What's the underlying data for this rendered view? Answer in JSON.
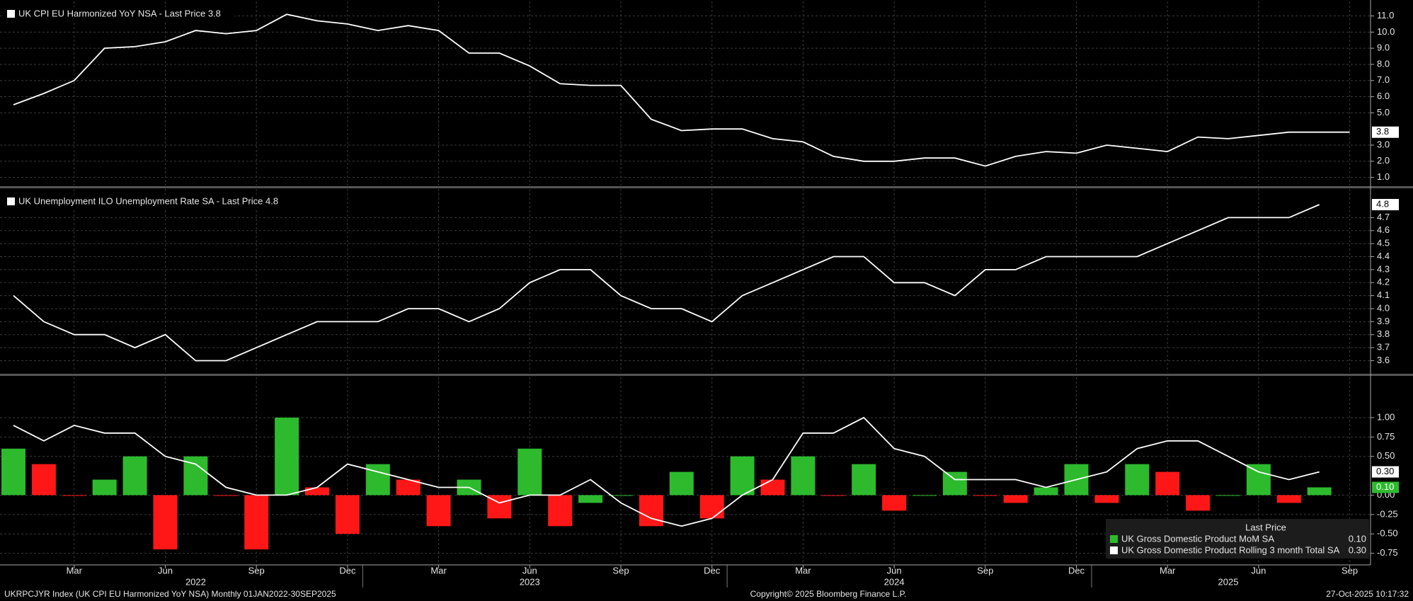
{
  "chart_data": [
    {
      "type": "line",
      "x": [
        "2022-01",
        "2022-02",
        "2022-03",
        "2022-04",
        "2022-05",
        "2022-06",
        "2022-07",
        "2022-08",
        "2022-09",
        "2022-10",
        "2022-11",
        "2022-12",
        "2023-01",
        "2023-02",
        "2023-03",
        "2023-04",
        "2023-05",
        "2023-06",
        "2023-07",
        "2023-08",
        "2023-09",
        "2023-10",
        "2023-11",
        "2023-12",
        "2024-01",
        "2024-02",
        "2024-03",
        "2024-04",
        "2024-05",
        "2024-06",
        "2024-07",
        "2024-08",
        "2024-09",
        "2024-10",
        "2024-11",
        "2024-12",
        "2025-01",
        "2025-02",
        "2025-03",
        "2025-04",
        "2025-05",
        "2025-06",
        "2025-07",
        "2025-08",
        "2025-09"
      ],
      "series": [
        {
          "name": "UK CPI EU Harmonized YoY NSA - Last Price 3.8",
          "color": "#ffffff",
          "values": [
            5.5,
            6.2,
            7.0,
            9.0,
            9.1,
            9.4,
            10.1,
            9.9,
            10.1,
            11.1,
            10.7,
            10.5,
            10.1,
            10.4,
            10.1,
            8.7,
            8.7,
            7.9,
            6.8,
            6.7,
            6.7,
            4.6,
            3.9,
            4.0,
            4.0,
            3.4,
            3.2,
            2.3,
            2.0,
            2.0,
            2.2,
            2.2,
            1.7,
            2.3,
            2.6,
            2.5,
            3.0,
            2.8,
            2.6,
            3.5,
            3.4,
            3.6,
            3.8,
            3.8,
            3.8
          ]
        }
      ],
      "ylim": [
        0.5,
        11.9
      ],
      "yticks": [
        {
          "value": 11,
          "label": "11.0"
        },
        {
          "value": 10,
          "label": "10.0"
        },
        {
          "value": 9,
          "label": "9.0"
        },
        {
          "value": 8,
          "label": "8.0"
        },
        {
          "value": 7,
          "label": "7.0"
        },
        {
          "value": 6,
          "label": "6.0"
        },
        {
          "value": 5,
          "label": "5.0"
        },
        {
          "value": 3,
          "label": "3.0"
        },
        {
          "value": 2,
          "label": "2.0"
        },
        {
          "value": 1,
          "label": "1.0"
        }
      ],
      "grid": true
    },
    {
      "type": "line",
      "x": [
        "2022-01",
        "2022-02",
        "2022-03",
        "2022-04",
        "2022-05",
        "2022-06",
        "2022-07",
        "2022-08",
        "2022-09",
        "2022-10",
        "2022-11",
        "2022-12",
        "2023-01",
        "2023-02",
        "2023-03",
        "2023-04",
        "2023-05",
        "2023-06",
        "2023-07",
        "2023-08",
        "2023-09",
        "2023-10",
        "2023-11",
        "2023-12",
        "2024-01",
        "2024-02",
        "2024-03",
        "2024-04",
        "2024-05",
        "2024-06",
        "2024-07",
        "2024-08",
        "2024-09",
        "2024-10",
        "2024-11",
        "2024-12",
        "2025-01",
        "2025-02",
        "2025-03",
        "2025-04",
        "2025-05",
        "2025-06",
        "2025-07",
        "2025-08",
        "2025-09"
      ],
      "series": [
        {
          "name": "UK Unemployment ILO Unemployment Rate SA - Last Price 4.8",
          "color": "#ffffff",
          "values": [
            4.1,
            3.9,
            3.8,
            3.8,
            3.7,
            3.8,
            3.6,
            3.6,
            3.7,
            3.8,
            3.9,
            3.9,
            3.9,
            4.0,
            4.0,
            3.9,
            4.0,
            4.2,
            4.3,
            4.3,
            4.1,
            4.0,
            4.0,
            3.9,
            4.1,
            4.2,
            4.3,
            4.4,
            4.4,
            4.2,
            4.2,
            4.1,
            4.3,
            4.3,
            4.4,
            4.4,
            4.4,
            4.4,
            4.5,
            4.6,
            4.7,
            4.7,
            4.7,
            4.8,
            null
          ]
        }
      ],
      "ylim": [
        3.51,
        4.92
      ],
      "yticks": [
        4.7,
        4.6,
        4.5,
        4.4,
        4.3,
        4.2,
        4.1,
        {
          "value": 4,
          "label": "4.0"
        },
        3.9,
        3.8,
        3.7,
        3.6
      ],
      "grid": true
    },
    {
      "type": "combo",
      "x": [
        "2022-01",
        "2022-02",
        "2022-03",
        "2022-04",
        "2022-05",
        "2022-06",
        "2022-07",
        "2022-08",
        "2022-09",
        "2022-10",
        "2022-11",
        "2022-12",
        "2023-01",
        "2023-02",
        "2023-03",
        "2023-04",
        "2023-05",
        "2023-06",
        "2023-07",
        "2023-08",
        "2023-09",
        "2023-10",
        "2023-11",
        "2023-12",
        "2024-01",
        "2024-02",
        "2024-03",
        "2024-04",
        "2024-05",
        "2024-06",
        "2024-07",
        "2024-08",
        "2024-09",
        "2024-10",
        "2024-11",
        "2024-12",
        "2025-01",
        "2025-02",
        "2025-03",
        "2025-04",
        "2025-05",
        "2025-06",
        "2025-07",
        "2025-08",
        "2025-09"
      ],
      "series": [
        {
          "name": "UK Gross Domestic Product MoM SA",
          "type": "bar",
          "color_up": "#2dba2d",
          "color_down": "#ff1717",
          "values": [
            0.6,
            0.4,
            0.0,
            0.2,
            0.5,
            -0.7,
            0.5,
            0.0,
            -0.7,
            1.0,
            0.1,
            -0.5,
            0.4,
            0.2,
            -0.4,
            0.2,
            -0.3,
            0.6,
            -0.4,
            -0.1,
            0.0,
            -0.4,
            0.3,
            -0.3,
            0.5,
            0.2,
            0.5,
            0.0,
            0.4,
            -0.2,
            0.0,
            0.3,
            0.0,
            -0.1,
            0.1,
            0.4,
            -0.1,
            0.4,
            0.3,
            -0.2,
            0.0,
            0.4,
            -0.1,
            0.1,
            null
          ],
          "last_value_label": "0.10"
        },
        {
          "name": "UK Gross Domestic Product Rolling 3 month Total SA",
          "type": "line",
          "color": "#ffffff",
          "values": [
            0.9,
            0.7,
            0.9,
            0.8,
            0.8,
            0.5,
            0.4,
            0.1,
            0.0,
            0.0,
            0.1,
            0.4,
            0.3,
            0.2,
            0.1,
            0.1,
            -0.1,
            0.0,
            0.0,
            0.2,
            -0.1,
            -0.3,
            -0.4,
            -0.3,
            0.0,
            0.2,
            0.8,
            0.8,
            1.0,
            0.6,
            0.5,
            0.2,
            0.2,
            0.2,
            0.1,
            0.2,
            0.3,
            0.6,
            0.7,
            0.7,
            0.5,
            0.3,
            0.2,
            0.3,
            null
          ],
          "last_value_label": "0.30"
        }
      ],
      "legend_title": "Last Price",
      "ylim": [
        -0.9,
        1.52
      ],
      "yticks": [
        {
          "value": 1,
          "label": "1.00"
        },
        {
          "value": 0.75,
          "label": "0.75"
        },
        {
          "value": 0.5,
          "label": "0.50"
        },
        {
          "value": 0,
          "label": "0.00"
        },
        {
          "value": -0.25,
          "label": "-0.25"
        },
        {
          "value": -0.5,
          "label": "-0.50"
        },
        {
          "value": -0.75,
          "label": "-0.75"
        }
      ],
      "xticks": [
        {
          "value": "2022-03",
          "label": "Mar"
        },
        {
          "value": "2022-06",
          "label": "Jun"
        },
        {
          "value": "2022-09",
          "label": "Sep"
        },
        {
          "value": "2022-12",
          "label": "Dec"
        },
        {
          "value": "2023-03",
          "label": "Mar"
        },
        {
          "value": "2023-06",
          "label": "Jun"
        },
        {
          "value": "2023-09",
          "label": "Sep"
        },
        {
          "value": "2023-12",
          "label": "Dec"
        },
        {
          "value": "2024-03",
          "label": "Mar"
        },
        {
          "value": "2024-06",
          "label": "Jun"
        },
        {
          "value": "2024-09",
          "label": "Sep"
        },
        {
          "value": "2024-12",
          "label": "Dec"
        },
        {
          "value": "2025-03",
          "label": "Mar"
        },
        {
          "value": "2025-06",
          "label": "Jun"
        },
        {
          "value": "2025-09",
          "label": "Sep"
        }
      ],
      "year_labels": [
        {
          "value": "2022-07",
          "label": "2022"
        },
        {
          "value": "2023-06",
          "label": "2023"
        },
        {
          "value": "2024-06",
          "label": "2024"
        },
        {
          "value": "2025-05",
          "label": "2025"
        }
      ],
      "grid": true
    }
  ],
  "footer": {
    "left": "UKRPCJYR Index (UK CPI EU Harmonized YoY NSA) Monthly 01JAN2022-30SEP2025",
    "center": "Copyright© 2025 Bloomberg Finance L.P.",
    "right": "27-Oct-2025 10:17:32"
  }
}
